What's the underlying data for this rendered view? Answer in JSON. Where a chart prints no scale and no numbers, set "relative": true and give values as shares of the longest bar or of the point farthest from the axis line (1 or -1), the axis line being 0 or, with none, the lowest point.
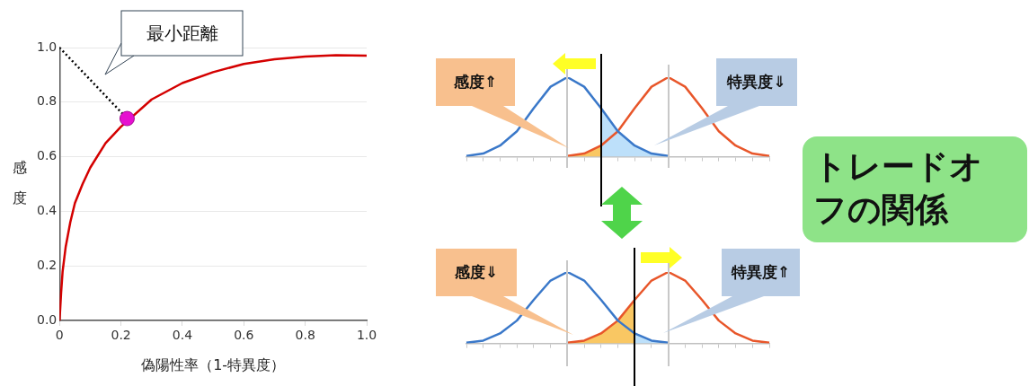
{
  "chart_data": [
    {
      "type": "line",
      "xlabel": "偽陽性率（1-特異度）",
      "ylabel": "感度",
      "xlim": [
        0,
        1
      ],
      "ylim": [
        0,
        1
      ],
      "xticks": [
        0,
        0.2,
        0.4,
        0.6,
        0.8,
        {
          "value": 1,
          "label": "1.0"
        }
      ],
      "yticks": [
        {
          "value": 0,
          "label": "0.0"
        },
        0.2,
        0.4,
        0.6,
        0.8,
        {
          "value": 1,
          "label": "1.0"
        }
      ],
      "grid": "y",
      "legend": false,
      "series": [
        {
          "type": "line",
          "color": "#d40000",
          "x": [
            0,
            0.005,
            0.01,
            0.02,
            0.035,
            0.05,
            0.075,
            0.1,
            0.15,
            0.2,
            0.3,
            0.4,
            0.5,
            0.6,
            0.7,
            0.8,
            0.9,
            1
          ],
          "values": [
            0,
            0.1,
            0.18,
            0.27,
            0.36,
            0.43,
            0.5,
            0.56,
            0.65,
            0.71,
            0.81,
            0.87,
            0.91,
            0.94,
            0.957,
            0.967,
            0.972,
            0.97
          ]
        },
        {
          "type": "line",
          "color": "#000000",
          "line_style": "dotted",
          "x": [
            0,
            0.22
          ],
          "values": [
            1,
            0.74
          ]
        },
        {
          "type": "scatter",
          "color": "#e60fd0",
          "marker": "circle",
          "x": [
            0.22
          ],
          "values": [
            0.74
          ]
        }
      ],
      "annotations": [
        "最小距離"
      ]
    },
    {
      "type": "line",
      "relative": true,
      "legend": false,
      "categories": [
        null,
        null,
        null,
        null,
        null,
        null,
        null,
        null,
        null,
        null,
        null,
        null,
        null,
        null,
        null,
        null,
        null,
        null,
        null
      ],
      "series": [
        {
          "type": "area",
          "color": "#bde0fa",
          "values": [
            null,
            null,
            null,
            null,
            null,
            null,
            null,
            null,
            0.61,
            0.32,
            0.14,
            0.04,
            0.01,
            null,
            null,
            null,
            null,
            null,
            null
          ]
        },
        {
          "type": "area",
          "color": "#f9c763",
          "values": [
            null,
            null,
            null,
            null,
            null,
            null,
            0.01,
            0.04,
            0.14,
            null,
            null,
            null,
            null,
            null,
            null,
            null,
            null,
            null,
            null
          ]
        },
        {
          "type": "line",
          "color": "#3a78c9",
          "values": [
            0.01,
            0.04,
            0.14,
            0.32,
            0.61,
            0.88,
            1,
            0.88,
            0.61,
            0.32,
            0.14,
            0.04,
            0.01,
            null,
            null,
            null,
            null,
            null,
            null
          ]
        },
        {
          "type": "line",
          "color": "#e8562a",
          "values": [
            null,
            null,
            null,
            null,
            null,
            null,
            0.01,
            0.04,
            0.14,
            0.32,
            0.61,
            0.88,
            1,
            0.88,
            0.61,
            0.32,
            0.14,
            0.04,
            0.01
          ]
        }
      ],
      "annotations": [
        "感度⇑",
        "特異度⇓"
      ]
    },
    {
      "type": "line",
      "relative": true,
      "legend": false,
      "categories": [
        null,
        null,
        null,
        null,
        null,
        null,
        null,
        null,
        null,
        null,
        null,
        null,
        null,
        null,
        null,
        null,
        null,
        null,
        null
      ],
      "series": [
        {
          "type": "area",
          "color": "#f9c763",
          "values": [
            null,
            null,
            null,
            null,
            null,
            null,
            0.01,
            0.04,
            0.14,
            0.32,
            0.61,
            null,
            null,
            null,
            null,
            null,
            null,
            null,
            null
          ]
        },
        {
          "type": "area",
          "color": "#bde0fa",
          "values": [
            null,
            null,
            null,
            null,
            null,
            null,
            null,
            null,
            null,
            null,
            0.14,
            0.04,
            0.01,
            null,
            null,
            null,
            null,
            null,
            null
          ]
        },
        {
          "type": "line",
          "color": "#3a78c9",
          "values": [
            0.01,
            0.04,
            0.14,
            0.32,
            0.61,
            0.88,
            1,
            0.88,
            0.61,
            0.32,
            0.14,
            0.04,
            0.01,
            null,
            null,
            null,
            null,
            null,
            null
          ]
        },
        {
          "type": "line",
          "color": "#e8562a",
          "values": [
            null,
            null,
            null,
            null,
            null,
            null,
            0.01,
            0.04,
            0.14,
            0.32,
            0.61,
            0.88,
            1,
            0.88,
            0.61,
            0.32,
            0.14,
            0.04,
            0.01
          ]
        }
      ],
      "annotations": [
        "感度⇓",
        "特異度⇑"
      ]
    },
    {
      "type": "other",
      "title": "トレードオフの関係"
    }
  ]
}
